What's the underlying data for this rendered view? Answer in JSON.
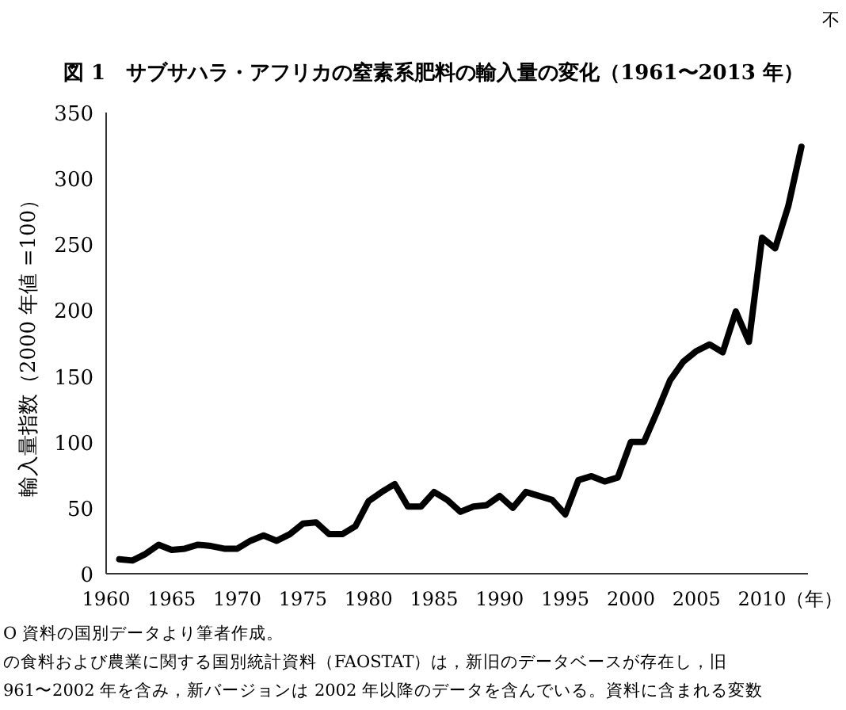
{
  "chart_data": {
    "type": "line",
    "title": "図 1　サブサハラ・アフリカの窒素系肥料の輸入量の変化（1961〜2013 年）",
    "ylabel": "輸入量指数（2000 年値 =100）",
    "xlabel": "（年）",
    "x": [
      1961,
      1962,
      1963,
      1964,
      1965,
      1966,
      1967,
      1968,
      1969,
      1970,
      1971,
      1972,
      1973,
      1974,
      1975,
      1976,
      1977,
      1978,
      1979,
      1980,
      1981,
      1982,
      1983,
      1984,
      1985,
      1986,
      1987,
      1988,
      1989,
      1990,
      1991,
      1992,
      1993,
      1994,
      1995,
      1996,
      1997,
      1998,
      1999,
      2000,
      2001,
      2002,
      2003,
      2004,
      2005,
      2006,
      2007,
      2008,
      2009,
      2010,
      2011,
      2012,
      2013
    ],
    "values": [
      11,
      10,
      15,
      22,
      18,
      19,
      22,
      21,
      19,
      19,
      25,
      29,
      25,
      30,
      38,
      39,
      30,
      30,
      36,
      55,
      62,
      68,
      51,
      51,
      62,
      56,
      47,
      51,
      52,
      59,
      50,
      62,
      59,
      56,
      45,
      71,
      74,
      70,
      73,
      100,
      100,
      123,
      147,
      161,
      169,
      174,
      168,
      199,
      176,
      255,
      247,
      279,
      324
    ],
    "color": "#000000",
    "xlim": [
      1960,
      2013.5
    ],
    "ylim": [
      0,
      350
    ],
    "xticks": [
      1960,
      1965,
      1970,
      1975,
      1980,
      1985,
      1990,
      1995,
      2000,
      2005,
      2010
    ],
    "yticks": [
      0,
      50,
      100,
      150,
      200,
      250,
      300,
      350
    ],
    "grid": false,
    "annotations": [
      "不",
      "O 資料の国別データより筆者作成。",
      "の食料および農業に関する国別統計資料（FAOSTAT）は，新旧のデータベースが存在し，旧",
      "961〜2002 年を含み，新バージョンは 2002 年以降のデータを含んでいる。資料に含まれる変数"
    ]
  }
}
